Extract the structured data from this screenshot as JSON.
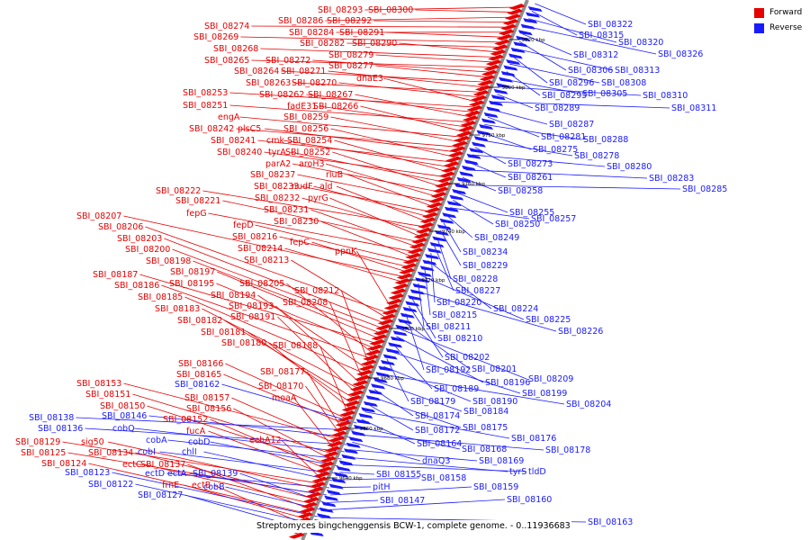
{
  "legend": {
    "forward": {
      "label": "Forward",
      "color": "#e60000"
    },
    "reverse": {
      "label": "Reverse",
      "color": "#1a1aff"
    }
  },
  "caption": "Streptomyces bingchenggensis BCW-1, complete genome. - 0..11936683",
  "scale_labels": [
    "9820 kbp",
    "9800 kbp",
    "9780 kbp",
    "9760 kbp",
    "9740 kbp",
    "9720 kbp",
    "9700 kbp",
    "9680 kbp",
    "9660 kbp",
    "9640 kbp",
    "9620 kbp"
  ],
  "forward_labels": [
    "SBI_08293",
    "SBI_08300",
    "SBI_08286",
    "SBI_08292",
    "SBI_08274",
    "SBI_08284",
    "SBI_08291",
    "SBI_08269",
    "SBI_08282",
    "SBI_08290",
    "SBI_08268",
    "SBI_08279",
    "SBI_08265",
    "SBI_08272",
    "SBI_08277",
    "SBI_08264",
    "SBI_08271",
    "SBI_08263",
    "SBI_08270",
    "dnaE3",
    "SBI_08253",
    "SBI_08262",
    "SBI_08267",
    "SBI_08251",
    "fadE31",
    "SBI_08266",
    "engA",
    "SBI_08259",
    "SBI_08242",
    "plsC5",
    "SBI_08256",
    "SBI_08241",
    "cmk",
    "SBI_08254",
    "SBI_08240",
    "tyrA",
    "SBI_08252",
    "parA2",
    "aroH3",
    "SBI_08237",
    "rluB",
    "SBI_08233",
    "nudF",
    "ald",
    "SBI_08222",
    "SBI_08232",
    "pyrG",
    "SBI_08221",
    "SBI_08231",
    "fepG",
    "SBI_08230",
    "fepD",
    "SBI_08216",
    "fepC",
    "SBI_08207",
    "SBI_08214",
    "ppnK",
    "SBI_08206",
    "SBI_08213",
    "SBI_08203",
    "SBI_08200",
    "SBI_08198",
    "SBI_08197",
    "SBI_08187",
    "SBI_08195",
    "SBI_08205",
    "SBI_08186",
    "SBI_08212",
    "SBI_08194",
    "SBI_08185",
    "SBI_08208",
    "SBI_08193",
    "SBI_08183",
    "SBI_08191",
    "SBI_08182",
    "SBI_08181",
    "SBI_08180",
    "SBI_08188",
    "SBI_08166",
    "SBI_08165",
    "SBI_08177",
    "SBI_08170",
    "SBI_08153",
    "SBI_08157",
    "moaA",
    "SBI_08151",
    "SBI_08156",
    "SBI_08150",
    "SBI_08152",
    "fucA",
    "echA12",
    "SBI_08129",
    "sig50",
    "SBI_08125",
    "SBI_08134",
    "ectC",
    "SBI_08137",
    "SBI_08124",
    "frnE",
    "ectB"
  ],
  "reverse_labels": [
    "SBI_08322",
    "SBI_08315",
    "SBI_08320",
    "SBI_08326",
    "SBI_08312",
    "SBI_08306",
    "SBI_08313",
    "SBI_08296",
    "SBI_08308",
    "SBI_08295",
    "SBI_08305",
    "SBI_08310",
    "SBI_08289",
    "SBI_08311",
    "SBI_08287",
    "SBI_08281",
    "SBI_08288",
    "SBI_08275",
    "SBI_08278",
    "SBI_08273",
    "SBI_08280",
    "SBI_08261",
    "SBI_08283",
    "SBI_08258",
    "SBI_08285",
    "SBI_08255",
    "SBI_08250",
    "SBI_08257",
    "SBI_08249",
    "SBI_08234",
    "SBI_08229",
    "SBI_08228",
    "SBI_08227",
    "SBI_08220",
    "SBI_08224",
    "SBI_08215",
    "SBI_08225",
    "SBI_08211",
    "SBI_08226",
    "SBI_08210",
    "SBI_08202",
    "SBI_08192",
    "SBI_08201",
    "SBI_08209",
    "SBI_08196",
    "SBI_08189",
    "SBI_08199",
    "SBI_08179",
    "SBI_08190",
    "SBI_08204",
    "SBI_08184",
    "SBI_08174",
    "SBI_08175",
    "SBI_08172",
    "SBI_08176",
    "SBI_08164",
    "SBI_08168",
    "SBI_08178",
    "dnaQ3",
    "SBI_08169",
    "tyrS",
    "tldD",
    "SBI_08155",
    "SBI_08158",
    "pitH",
    "SBI_08159",
    "SBI_08147",
    "SBI_08160",
    "SBI_08163",
    "SBI_08162",
    "SBI_08138",
    "SBI_08146",
    "SBI_08136",
    "cobQ",
    "cobA",
    "cobD",
    "cobI",
    "chlI",
    "ectD",
    "ectA",
    "SBI_08139",
    "cobB",
    "SBI_08123",
    "SBI_08122",
    "SBI_08127"
  ]
}
